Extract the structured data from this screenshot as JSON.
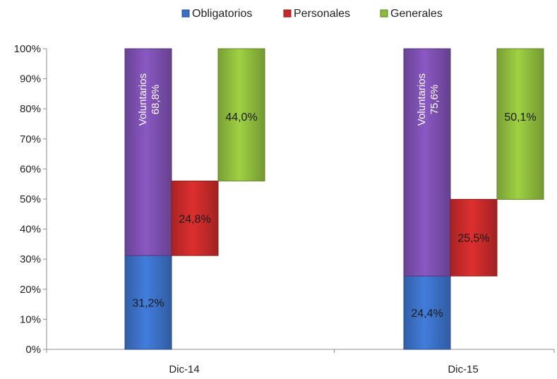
{
  "chart_data": {
    "type": "bar",
    "categories": [
      "Dic-14",
      "Dic-15"
    ],
    "ylim": [
      0,
      100
    ],
    "y_ticks": [
      "0%",
      "10%",
      "20%",
      "30%",
      "40%",
      "50%",
      "60%",
      "70%",
      "80%",
      "90%",
      "100%"
    ],
    "legend": {
      "placement": "top-center",
      "entries": [
        {
          "name": "Obligatorios",
          "color": "#3b70c4"
        },
        {
          "name": "Personales",
          "color": "#c62a2a"
        },
        {
          "name": "Generales",
          "color": "#8dbb3c"
        }
      ]
    },
    "voluntarios_color": "#7b4fae",
    "voluntarios_word": "Voluntarios",
    "groups": [
      {
        "category": "Dic-14",
        "obligatorios": {
          "value": 31.2,
          "label": "31,2%"
        },
        "voluntarios": {
          "value": 68.8,
          "label": "68,8%"
        },
        "personales": {
          "value": 24.8,
          "label": "24,8%"
        },
        "generales": {
          "value": 44.0,
          "label": "44,0%"
        }
      },
      {
        "category": "Dic-15",
        "obligatorios": {
          "value": 24.4,
          "label": "24,4%"
        },
        "voluntarios": {
          "value": 75.6,
          "label": "75,6%"
        },
        "personales": {
          "value": 25.5,
          "label": "25,5%"
        },
        "generales": {
          "value": 50.1,
          "label": "50,1%"
        }
      }
    ]
  }
}
